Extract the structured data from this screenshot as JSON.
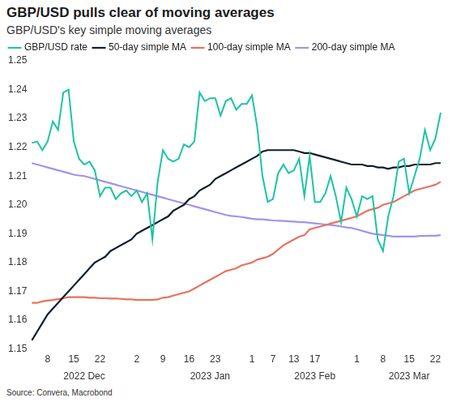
{
  "chart_data": {
    "type": "line",
    "title": "GBP/USD pulls clear of moving averages",
    "subtitle": "GBP/USD's key simple moving averages",
    "source": "Source: Convera, Macrobond",
    "categories": [
      null,
      null,
      null,
      "8",
      null,
      null,
      null,
      null,
      "15",
      null,
      null,
      null,
      null,
      "22",
      null,
      null,
      null,
      null,
      null,
      null,
      "2",
      null,
      null,
      null,
      null,
      "9",
      null,
      null,
      null,
      null,
      "16",
      null,
      null,
      null,
      null,
      "23",
      null,
      null,
      null,
      null,
      null,
      null,
      "1",
      null,
      null,
      null,
      "7",
      null,
      null,
      null,
      "13",
      null,
      null,
      null,
      "17",
      null,
      null,
      null,
      null,
      null,
      null,
      null,
      "1",
      null,
      null,
      null,
      null,
      "8",
      null,
      null,
      null,
      null,
      "15",
      null,
      null,
      null,
      null,
      "22",
      null
    ],
    "period_labels": [
      null,
      null,
      null,
      null,
      null,
      null,
      null,
      null,
      null,
      null,
      "2022 Dec",
      null,
      null,
      null,
      null,
      null,
      null,
      null,
      null,
      null,
      null,
      null,
      null,
      null,
      null,
      null,
      null,
      null,
      null,
      null,
      null,
      null,
      null,
      null,
      "2023 Jan",
      null,
      null,
      null,
      null,
      null,
      null,
      null,
      null,
      null,
      null,
      null,
      null,
      null,
      null,
      null,
      null,
      null,
      null,
      null,
      "2023 Feb",
      null,
      null,
      null,
      null,
      null,
      null,
      null,
      null,
      null,
      null,
      null,
      null,
      null,
      null,
      null,
      null,
      null,
      "2023 Mar",
      null,
      null,
      null,
      null,
      null,
      null
    ],
    "series": [
      {
        "name": "GBP/USD rate",
        "color": "#1cc4a3",
        "values": [
          1.2215,
          1.222,
          1.219,
          1.222,
          1.229,
          1.226,
          1.239,
          1.24,
          1.222,
          1.216,
          1.214,
          1.215,
          1.212,
          1.203,
          1.206,
          1.206,
          1.202,
          1.204,
          1.205,
          1.203,
          1.205,
          1.201,
          1.204,
          1.188,
          1.208,
          1.219,
          1.216,
          1.215,
          1.216,
          1.221,
          1.22,
          1.222,
          1.239,
          1.236,
          1.237,
          1.237,
          1.231,
          1.236,
          1.237,
          1.233,
          1.235,
          1.235,
          1.238,
          1.227,
          1.21,
          1.201,
          1.202,
          1.211,
          1.214,
          1.211,
          1.212,
          1.216,
          1.203,
          1.217,
          1.201,
          1.201,
          1.204,
          1.21,
          1.203,
          1.194,
          1.206,
          1.202,
          1.196,
          1.203,
          1.202,
          1.203,
          1.188,
          1.184,
          1.196,
          1.203,
          1.215,
          1.216,
          1.204,
          1.21,
          1.216,
          1.226,
          1.219,
          1.223,
          1.232
        ]
      },
      {
        "name": "50-day simple MA",
        "color": "#0f1e2e",
        "values": [
          1.153,
          1.156,
          1.159,
          1.162,
          1.164,
          1.166,
          1.168,
          1.17,
          1.172,
          1.174,
          1.176,
          1.178,
          1.18,
          1.181,
          1.182,
          1.184,
          1.185,
          1.186,
          1.187,
          1.188,
          1.19,
          1.191,
          1.192,
          1.193,
          1.194,
          1.195,
          1.196,
          1.198,
          1.199,
          1.2,
          1.202,
          1.203,
          1.205,
          1.206,
          1.207,
          1.209,
          1.21,
          1.211,
          1.212,
          1.213,
          1.214,
          1.215,
          1.216,
          1.217,
          1.2185,
          1.219,
          1.219,
          1.219,
          1.219,
          1.219,
          1.219,
          1.2185,
          1.218,
          1.218,
          1.2175,
          1.217,
          1.2165,
          1.216,
          1.2155,
          1.215,
          1.2145,
          1.214,
          1.214,
          1.214,
          1.2135,
          1.2135,
          1.213,
          1.213,
          1.2125,
          1.213,
          1.213,
          1.2135,
          1.2135,
          1.214,
          1.214,
          1.214,
          1.214,
          1.2145,
          1.2145
        ]
      },
      {
        "name": "100-day simple MA",
        "color": "#e8725f",
        "values": [
          1.166,
          1.166,
          1.1665,
          1.1668,
          1.167,
          1.1673,
          1.1676,
          1.168,
          1.168,
          1.168,
          1.168,
          1.1678,
          1.1678,
          1.1676,
          1.1676,
          1.1675,
          1.1675,
          1.1674,
          1.1672,
          1.1672,
          1.167,
          1.167,
          1.167,
          1.167,
          1.1672,
          1.1678,
          1.168,
          1.1685,
          1.169,
          1.1695,
          1.17,
          1.171,
          1.172,
          1.173,
          1.174,
          1.175,
          1.176,
          1.177,
          1.1775,
          1.178,
          1.179,
          1.1795,
          1.18,
          1.181,
          1.1815,
          1.182,
          1.183,
          1.1845,
          1.186,
          1.187,
          1.188,
          1.189,
          1.1895,
          1.1915,
          1.192,
          1.1925,
          1.193,
          1.1935,
          1.194,
          1.1945,
          1.195,
          1.1955,
          1.196,
          1.197,
          1.198,
          1.1985,
          1.199,
          1.2,
          1.2005,
          1.201,
          1.202,
          1.203,
          1.204,
          1.205,
          1.2055,
          1.206,
          1.2065,
          1.207,
          1.208
        ]
      },
      {
        "name": "200-day simple MA",
        "color": "#a393ea",
        "values": [
          1.2145,
          1.214,
          1.2135,
          1.213,
          1.2125,
          1.212,
          1.2115,
          1.211,
          1.2105,
          1.2102,
          1.21,
          1.2095,
          1.209,
          1.2085,
          1.208,
          1.2075,
          1.207,
          1.2065,
          1.206,
          1.2055,
          1.205,
          1.2045,
          1.204,
          1.2035,
          1.203,
          1.2025,
          1.202,
          1.2015,
          1.201,
          1.2005,
          1.2,
          1.1995,
          1.199,
          1.1985,
          1.198,
          1.1975,
          1.197,
          1.1965,
          1.1962,
          1.196,
          1.1958,
          1.1955,
          1.1952,
          1.195,
          1.195,
          1.1948,
          1.1946,
          1.1945,
          1.1944,
          1.1943,
          1.1942,
          1.194,
          1.194,
          1.1938,
          1.1936,
          1.1934,
          1.1932,
          1.193,
          1.1928,
          1.1925,
          1.1922,
          1.192,
          1.1915,
          1.191,
          1.1905,
          1.19,
          1.1898,
          1.1895,
          1.1893,
          1.189,
          1.189,
          1.189,
          1.189,
          1.189,
          1.1892,
          1.1892,
          1.1893,
          1.1893,
          1.1895
        ]
      }
    ],
    "ylim": [
      1.15,
      1.25
    ],
    "yticks": [
      1.15,
      1.16,
      1.17,
      1.18,
      1.19,
      {
        "value": 1.2,
        "label": "1.20"
      },
      1.21,
      1.22,
      1.23,
      1.24,
      1.25
    ],
    "grid": false,
    "legend": "top"
  }
}
